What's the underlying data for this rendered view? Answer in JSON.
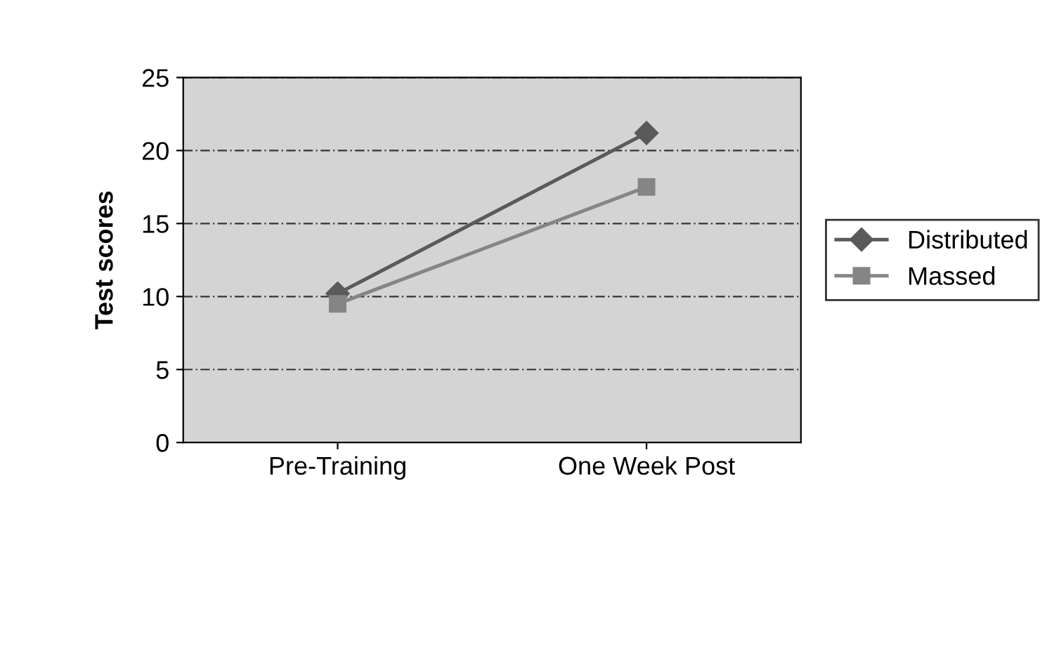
{
  "chart_data": {
    "type": "line",
    "ylabel": "Test scores",
    "categories": [
      "Pre-Training",
      "One Week Post"
    ],
    "series": [
      {
        "name": "Distributed",
        "color": "#5a5a5a",
        "marker": "diamond",
        "values": [
          10.2,
          21.2
        ]
      },
      {
        "name": "Massed",
        "color": "#858585",
        "marker": "square",
        "values": [
          9.5,
          17.5
        ]
      }
    ],
    "ylim": [
      0,
      25
    ],
    "yticks": [
      0,
      5,
      10,
      15,
      20,
      25
    ],
    "grid": "y",
    "legend": "right",
    "line_style": "solid"
  }
}
